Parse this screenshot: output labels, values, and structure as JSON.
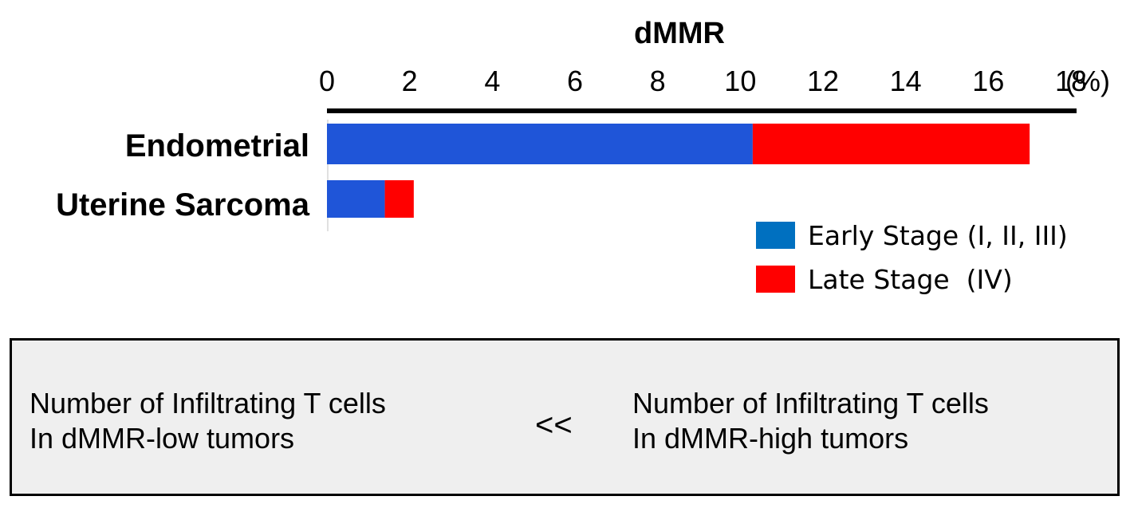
{
  "chart_data": {
    "type": "bar",
    "orientation": "horizontal",
    "stacked": true,
    "title": "dMMR",
    "unit": "(%)",
    "xlim": [
      0,
      18
    ],
    "xticks": [
      0,
      2,
      4,
      6,
      8,
      10,
      12,
      14,
      16,
      18
    ],
    "categories": [
      "Endometrial",
      "Uterine Sarcoma"
    ],
    "series": [
      {
        "name": "Early Stage (I, II, III)",
        "color": "#1f55d8",
        "values": [
          10.3,
          1.4
        ]
      },
      {
        "name": "Late Stage  (IV)",
        "color": "#ff0000",
        "values": [
          6.7,
          0.7
        ]
      }
    ],
    "grid": false,
    "legend_position": "bottom-right",
    "legend_colors": [
      "#0070c0",
      "#ff0000"
    ]
  },
  "note": {
    "left_line1": "Number of Infiltrating T cells",
    "left_line2": "In dMMR-low tumors",
    "operator": "<<",
    "right_line1": "Number of Infiltrating T cells",
    "right_line2": "In dMMR-high tumors"
  }
}
